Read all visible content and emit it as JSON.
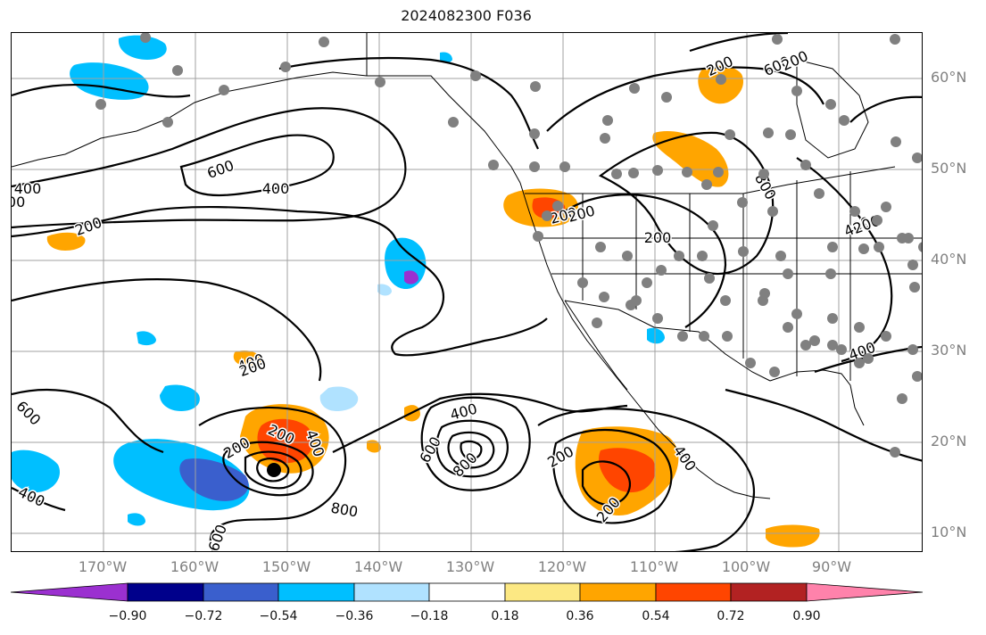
{
  "title": "2024082300 F036",
  "lat_labels": [
    "60°N",
    "50°N",
    "40°N",
    "30°N",
    "20°N",
    "10°N"
  ],
  "lon_labels": [
    "170°W",
    "160°W",
    "150°W",
    "140°W",
    "130°W",
    "120°W",
    "110°W",
    "100°W",
    "90°W"
  ],
  "colorbar": {
    "ticks": [
      "−0.90",
      "−0.72",
      "−0.54",
      "−0.36",
      "−0.18",
      "0.18",
      "0.36",
      "0.54",
      "0.72",
      "0.90"
    ],
    "colors": [
      "#9b30d0",
      "#00008b",
      "#3a5fcd",
      "#00bfff",
      "#b0e2ff",
      "#ffffff",
      "#fce883",
      "#ffa500",
      "#ff4500",
      "#b22222",
      "#ff82ab"
    ]
  },
  "contour_labels": [
    "600",
    "400",
    "200",
    "200",
    "400",
    "600",
    "800",
    "200",
    "200",
    "400",
    "400",
    "600",
    "800",
    "400",
    "600",
    "200",
    "200",
    "400",
    "200",
    "200",
    "600",
    "800",
    "200",
    "400",
    "400",
    "200",
    "200",
    "400",
    "200",
    "200"
  ],
  "colors": {
    "contour": "#000000",
    "grid": "#a0a0a0",
    "station": "#808080",
    "orange": "#ffa500",
    "red": "#ff4500",
    "lightblue": "#b0e2ff",
    "skyblue": "#00bfff",
    "blue": "#3a5fcd"
  }
}
